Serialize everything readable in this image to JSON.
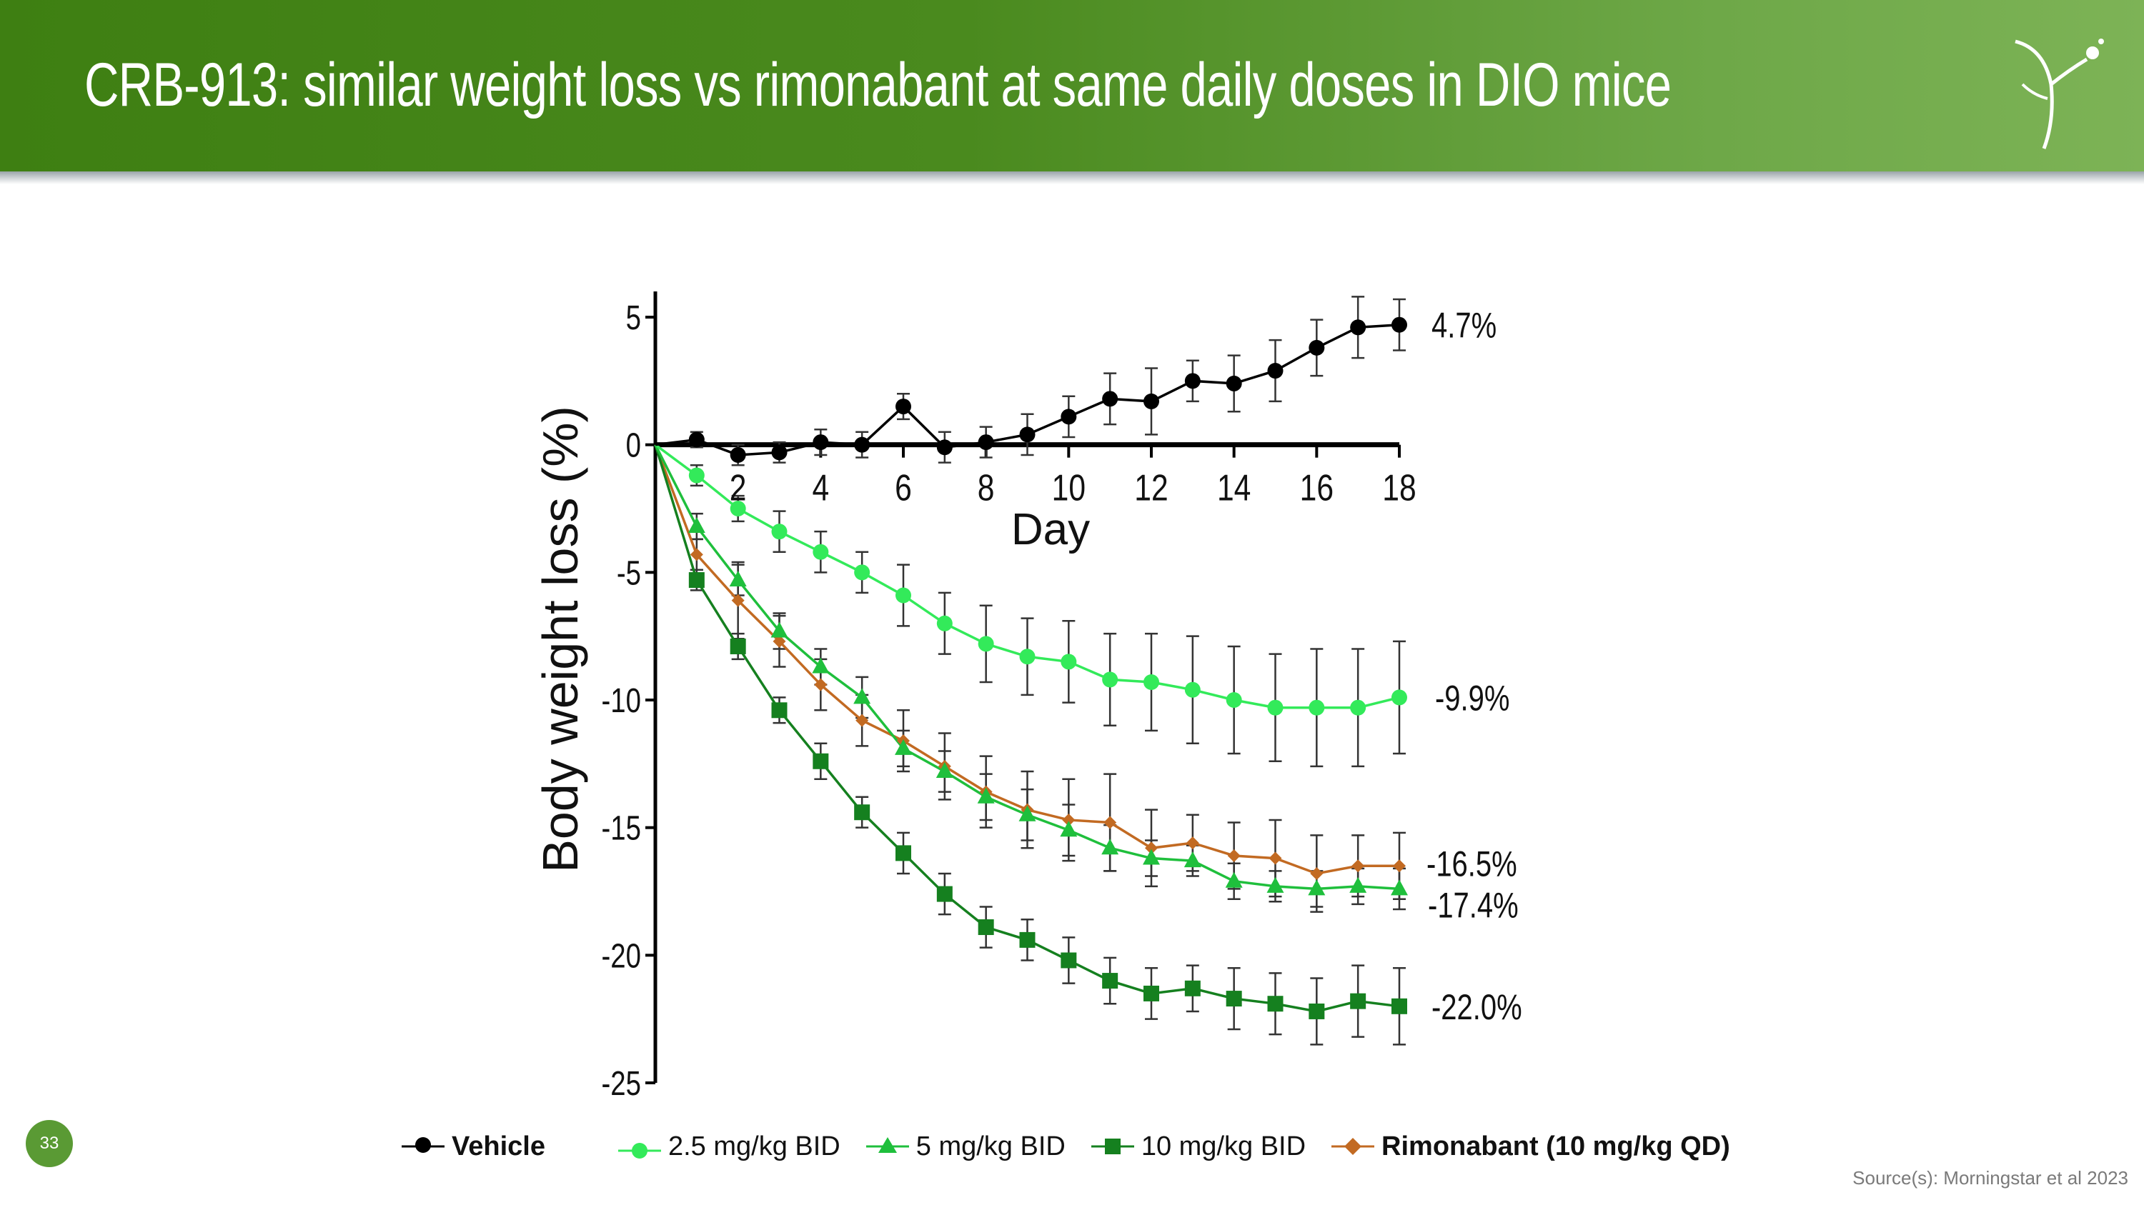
{
  "slide": {
    "title": "CRB-913: similar weight loss vs rimonabant at same daily doses in DIO mice",
    "page_number": "33",
    "source": "Source(s): Morningstar et al 2023"
  },
  "chart_data": {
    "type": "line",
    "title": "",
    "xlabel": "Day",
    "ylabel": "Body weight loss (%)",
    "xlim": [
      0,
      18
    ],
    "ylim": [
      -25,
      5
    ],
    "x_ticks": [
      2,
      4,
      6,
      8,
      10,
      12,
      14,
      16,
      18
    ],
    "y_ticks": [
      5,
      0,
      -5,
      -10,
      -15,
      -20,
      -25
    ],
    "x": [
      0,
      1,
      2,
      3,
      4,
      5,
      6,
      7,
      8,
      9,
      10,
      11,
      12,
      13,
      14,
      15,
      16,
      17,
      18
    ],
    "series": [
      {
        "name": "Vehicle",
        "color": "#000000",
        "marker": "circle",
        "end_label": "4.7%",
        "values": [
          0,
          0.2,
          -0.4,
          -0.3,
          0.1,
          0.0,
          1.5,
          -0.1,
          0.1,
          0.4,
          1.1,
          1.8,
          1.7,
          2.5,
          2.4,
          2.9,
          3.8,
          4.6,
          4.7
        ],
        "errors": [
          0,
          0.3,
          0.4,
          0.4,
          0.5,
          0.5,
          0.5,
          0.6,
          0.6,
          0.8,
          0.8,
          1.0,
          1.3,
          0.8,
          1.1,
          1.2,
          1.1,
          1.2,
          1.0
        ]
      },
      {
        "name": "2.5 mg/kg BID",
        "color": "#33ea5a",
        "marker": "circle",
        "end_label": "-9.9%",
        "values": [
          0,
          -1.2,
          -2.5,
          -3.4,
          -4.2,
          -5.0,
          -5.9,
          -7.0,
          -7.8,
          -8.3,
          -8.5,
          -9.2,
          -9.3,
          -9.6,
          -10.0,
          -10.3,
          -10.3,
          -10.3,
          -9.9
        ],
        "errors": [
          0,
          0.4,
          0.5,
          0.8,
          0.8,
          0.8,
          1.2,
          1.2,
          1.5,
          1.5,
          1.6,
          1.8,
          1.9,
          2.1,
          2.1,
          2.1,
          2.3,
          2.3,
          2.2
        ]
      },
      {
        "name": "5 mg/kg BID",
        "color": "#1fbf3c",
        "marker": "triangle",
        "end_label": "-17.4%",
        "values": [
          0,
          -3.2,
          -5.3,
          -7.3,
          -8.7,
          -9.9,
          -11.9,
          -12.8,
          -13.8,
          -14.5,
          -15.1,
          -15.8,
          -16.2,
          -16.3,
          -17.1,
          -17.3,
          -17.4,
          -17.3,
          -17.4
        ],
        "errors": [
          0,
          0.5,
          0.6,
          0.7,
          0.7,
          0.8,
          0.7,
          0.8,
          0.9,
          1.0,
          1.0,
          0.9,
          0.7,
          0.6,
          0.7,
          0.6,
          0.7,
          0.7,
          0.8
        ]
      },
      {
        "name": "10 mg/kg BID",
        "color": "#15801f",
        "marker": "square",
        "end_label": "-22.0%",
        "values": [
          0,
          -5.3,
          -7.9,
          -10.4,
          -12.4,
          -14.4,
          -16.0,
          -17.6,
          -18.9,
          -19.4,
          -20.2,
          -21.0,
          -21.5,
          -21.3,
          -21.7,
          -21.9,
          -22.2,
          -21.8,
          -22.0
        ],
        "errors": [
          0,
          0.4,
          0.5,
          0.5,
          0.7,
          0.6,
          0.8,
          0.8,
          0.8,
          0.8,
          0.9,
          0.9,
          1.0,
          0.9,
          1.2,
          1.2,
          1.3,
          1.4,
          1.5
        ]
      },
      {
        "name": "Rimonabant (10 mg/kg QD)",
        "color": "#c26a22",
        "marker": "diamond",
        "end_label": "-16.5%",
        "values": [
          0,
          -4.3,
          -6.1,
          -7.7,
          -9.4,
          -10.8,
          -11.6,
          -12.6,
          -13.6,
          -14.3,
          -14.7,
          -14.8,
          -15.8,
          -15.6,
          -16.1,
          -16.2,
          -16.8,
          -16.5,
          -16.5
        ],
        "errors": [
          0,
          0.6,
          1.5,
          1.0,
          1.0,
          1.0,
          1.2,
          1.3,
          1.4,
          1.5,
          1.6,
          1.9,
          1.5,
          1.1,
          1.3,
          1.5,
          1.5,
          1.2,
          1.3
        ]
      }
    ]
  }
}
